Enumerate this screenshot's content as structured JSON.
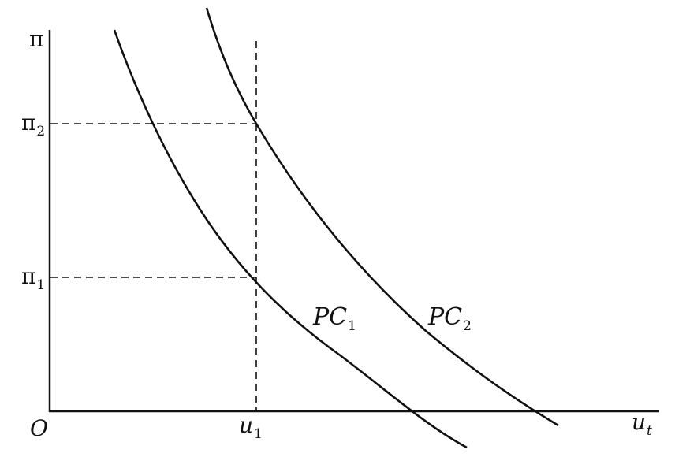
{
  "axes": {
    "y_label": "π",
    "x_label": "u",
    "x_label_sub": "t",
    "origin": "O"
  },
  "y_ticks": [
    {
      "label": "π",
      "sub": "2"
    },
    {
      "label": "π",
      "sub": "1"
    }
  ],
  "x_ticks": [
    {
      "label": "u",
      "sub": "1"
    }
  ],
  "curves": [
    {
      "label": "PC",
      "sub": "1"
    },
    {
      "label": "PC",
      "sub": "2"
    }
  ],
  "colors": {
    "line": "#111111",
    "background": "#ffffff"
  }
}
